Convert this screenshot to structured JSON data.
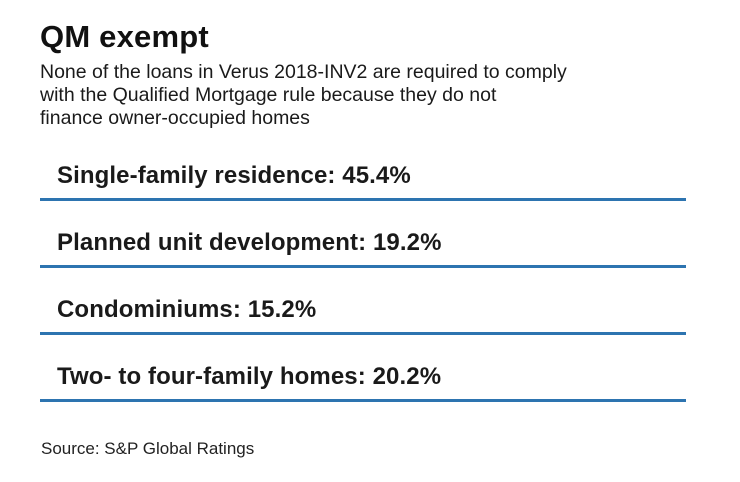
{
  "header": {
    "title": "QM exempt",
    "subtitle_lines": [
      "None of the loans in Verus 2018-INV2 are required to comply",
      "with the Qualified Mortgage rule because they do not",
      "finance owner-occupied homes"
    ]
  },
  "list": {
    "items": [
      {
        "text": "Single-family residence: 45.4%"
      },
      {
        "text": "Planned unit development: 19.2%"
      },
      {
        "text": "Condominiums: 15.2%"
      },
      {
        "text": "Two- to four-family homes: 20.2%"
      }
    ]
  },
  "footer": {
    "source": "Source: S&P Global Ratings"
  },
  "colors": {
    "rule_blue": "#2d74b0",
    "text": "#1a1a1a"
  },
  "chart_data": {
    "type": "table",
    "title": "QM exempt",
    "subtitle": "None of the loans in Verus 2018-INV2 are required to comply with the Qualified Mortgage rule because they do not finance owner-occupied homes",
    "categories": [
      "Single-family residence",
      "Planned unit development",
      "Condominiums",
      "Two- to four-family homes"
    ],
    "values": [
      45.4,
      19.2,
      15.2,
      20.2
    ],
    "unit": "%",
    "legend": false,
    "grid": false,
    "source": "Source: S&P Global Ratings"
  }
}
